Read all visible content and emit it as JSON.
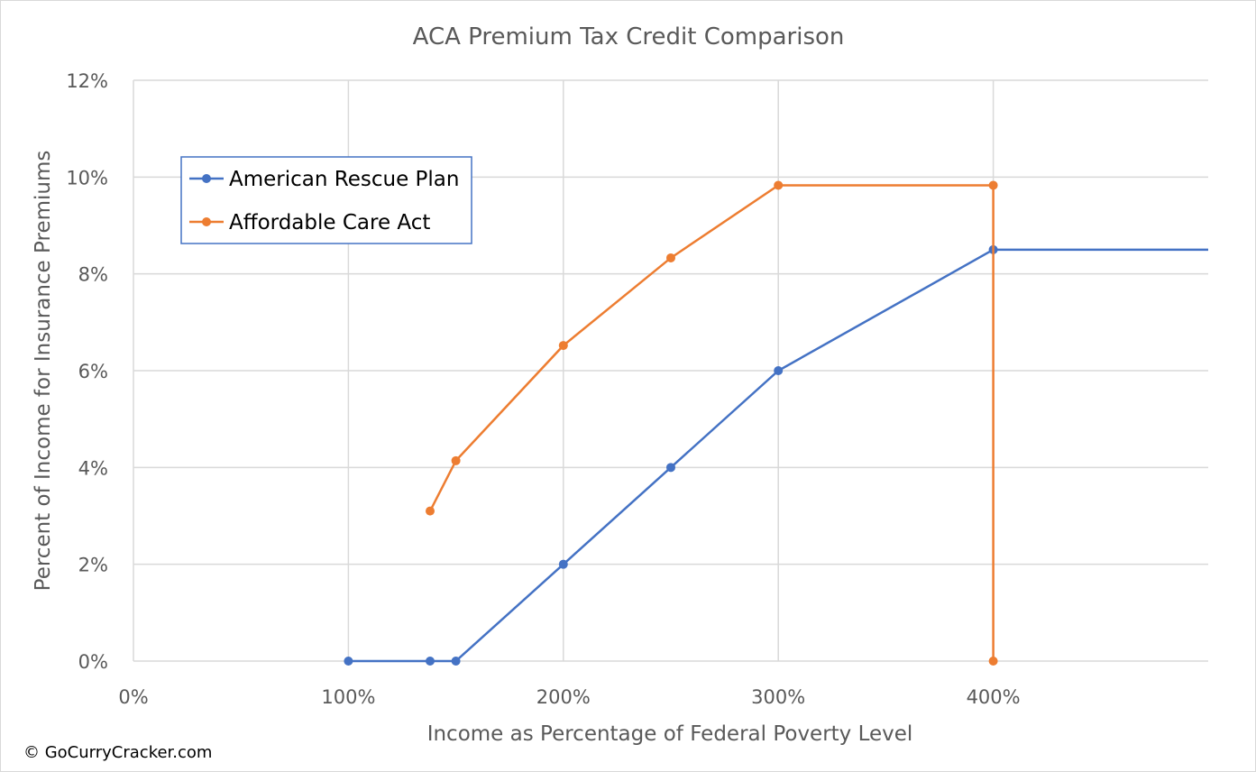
{
  "chart_data": {
    "type": "line",
    "title": "ACA Premium Tax Credit Comparison",
    "xlabel": "Income as Percentage of Federal Poverty Level",
    "ylabel": "Percent of Income for Insurance Premiums",
    "xlim": [
      0,
      500
    ],
    "ylim": [
      0,
      12
    ],
    "x_ticks": [
      0,
      100,
      200,
      300,
      400
    ],
    "x_tick_labels": [
      "0%",
      "100%",
      "200%",
      "300%",
      "400%"
    ],
    "y_ticks": [
      0,
      2,
      4,
      6,
      8,
      10,
      12
    ],
    "y_tick_labels": [
      "0%",
      "2%",
      "4%",
      "6%",
      "8%",
      "10%",
      "12%"
    ],
    "grid": true,
    "legend_position": "top-left",
    "series": [
      {
        "name": "American Rescue Plan",
        "color": "#4472c4",
        "x": [
          100,
          138,
          150,
          200,
          250,
          300,
          400
        ],
        "y": [
          0,
          0,
          0,
          2,
          4,
          6,
          8.5
        ],
        "tail_line_to_x": 500
      },
      {
        "name": "Affordable Care Act",
        "color": "#ed7d31",
        "x": [
          138,
          150,
          200,
          250,
          300,
          400,
          400
        ],
        "y": [
          3.1,
          4.14,
          6.52,
          8.33,
          9.83,
          9.83,
          0
        ]
      }
    ]
  },
  "credit": "© GoCurryCracker.com"
}
